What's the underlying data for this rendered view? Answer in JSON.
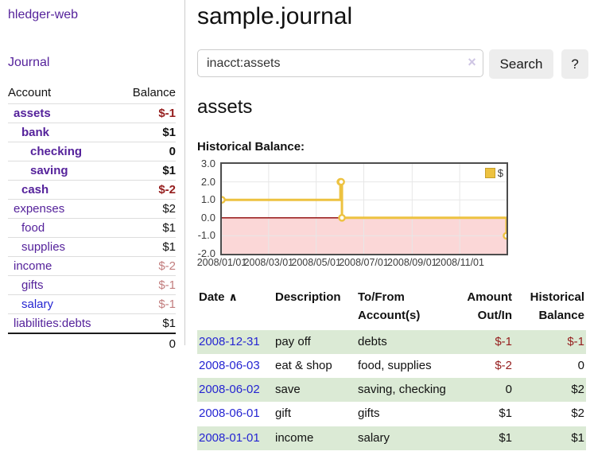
{
  "icons": {
    "sort_asc": "∧",
    "clear": "×"
  },
  "sidebar": {
    "app_title": "hledger-web",
    "journal_label": "Journal",
    "accounts_table": {
      "headers": {
        "account": "Account",
        "balance": "Balance"
      },
      "rows": [
        {
          "name": "assets",
          "balance": "$-1"
        },
        {
          "name": "bank",
          "balance": "$1"
        },
        {
          "name": "checking",
          "balance": "0"
        },
        {
          "name": "saving",
          "balance": "$1"
        },
        {
          "name": "cash",
          "balance": "$-2"
        },
        {
          "name": "expenses",
          "balance": "$2"
        },
        {
          "name": "food",
          "balance": "$1"
        },
        {
          "name": "supplies",
          "balance": "$1"
        },
        {
          "name": "income",
          "balance": "$-2"
        },
        {
          "name": "gifts",
          "balance": "$-1"
        },
        {
          "name": "salary",
          "balance": "$-1"
        },
        {
          "name": "liabilities:debts",
          "balance": "$1"
        }
      ],
      "total": "0"
    }
  },
  "main": {
    "title": "sample.journal",
    "search": {
      "value": "inacct:assets",
      "button_label": "Search",
      "help_label": "?"
    },
    "account_heading": "assets",
    "chart_label": "Historical Balance:"
  },
  "chart_data": {
    "type": "line",
    "title": "Historical Balance",
    "steps": true,
    "xlim": [
      "2008-01-01",
      "2008-12-31"
    ],
    "ylim": [
      -2,
      3
    ],
    "y_ticks": [
      "3.0",
      "2.0",
      "1.0",
      "0.0",
      "-1.0",
      "-2.0"
    ],
    "x_ticks": [
      "2008/01/01",
      "2008/03/01",
      "2008/05/01",
      "2008/07/01",
      "2008/09/01",
      "2008/11/01"
    ],
    "series": [
      {
        "name": "$",
        "color": "#edc240",
        "points": [
          {
            "x": "2008-01-01",
            "y": 1
          },
          {
            "x": "2008-06-01",
            "y": 2
          },
          {
            "x": "2008-06-02",
            "y": 2
          },
          {
            "x": "2008-06-03",
            "y": 0
          },
          {
            "x": "2008-12-31",
            "y": -1
          }
        ]
      }
    ],
    "legend": {
      "label": "$",
      "position": "top-right"
    },
    "colors": {
      "negative_region": "#fbd7d7",
      "zero_line": "#8b0000",
      "gridline": "#e7e7e7",
      "plot_border": "#4d4d4d"
    }
  },
  "register": {
    "headers": {
      "date": "Date",
      "description": "Description",
      "tofrom_line1": "To/From",
      "tofrom_line2": "Account(s)",
      "amount_line1": "Amount",
      "amount_line2": "Out/In",
      "hist_line1": "Historical",
      "hist_line2": "Balance"
    },
    "rows": [
      {
        "date": "2008-12-31",
        "description": "pay off",
        "tofrom": "debts",
        "amount": "$-1",
        "balance": "$-1"
      },
      {
        "date": "2008-06-03",
        "description": "eat & shop",
        "tofrom": "food, supplies",
        "amount": "$-2",
        "balance": "0"
      },
      {
        "date": "2008-06-02",
        "description": "save",
        "tofrom": "saving, checking",
        "amount": "0",
        "balance": "$2"
      },
      {
        "date": "2008-06-01",
        "description": "gift",
        "tofrom": "gifts",
        "amount": "$1",
        "balance": "$2"
      },
      {
        "date": "2008-01-01",
        "description": "income",
        "tofrom": "salary",
        "amount": "$1",
        "balance": "$1"
      }
    ]
  }
}
